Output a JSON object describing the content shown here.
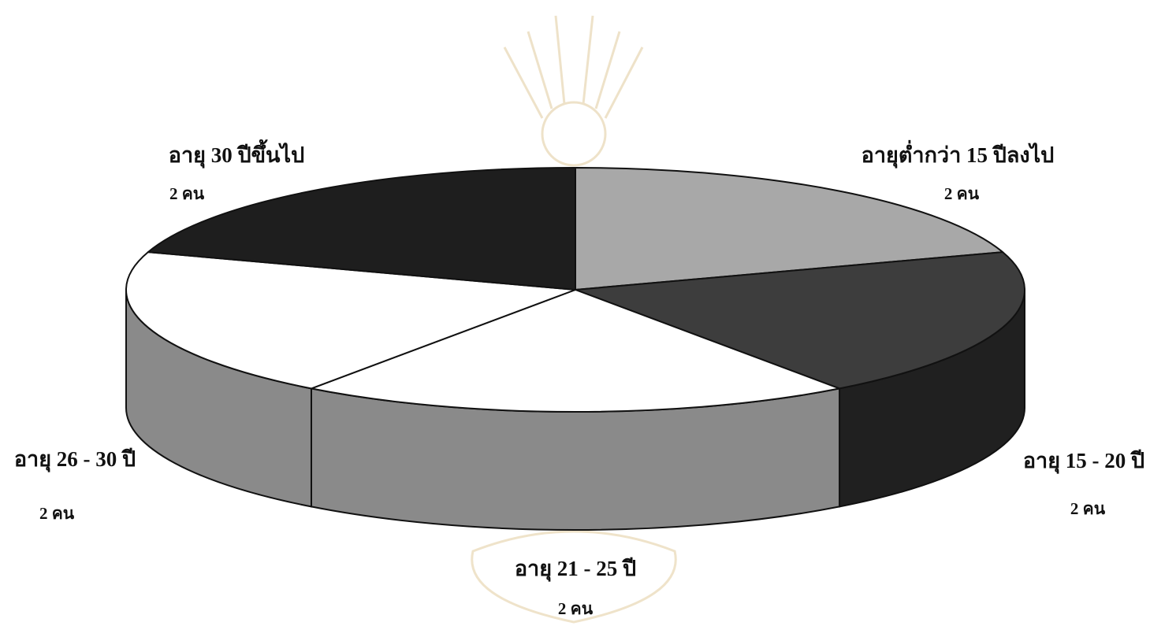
{
  "chart_data": {
    "type": "pie",
    "categories": [
      "อายุต่ำกว่า 15 ปีลงไป",
      "อายุ 15 - 20 ปี",
      "อายุ 21 - 25 ปี",
      "อายุ 26 - 30 ปี",
      "อายุ 30 ปีขึ้นไป"
    ],
    "values": [
      2,
      2,
      2,
      2,
      2
    ],
    "value_labels": [
      "2 คน",
      "2 คน",
      "2 คน",
      "2 คน",
      "2 คน"
    ],
    "title": "",
    "three_d": true,
    "colors": {
      "top": [
        "#a8a8a8",
        "#3d3d3d",
        "#ffffff",
        "#ffffff",
        "#1e1e1e"
      ],
      "side": [
        "#8e8e8e",
        "#202020",
        "#8a8a8a",
        "#8a8a8a",
        "#141414"
      ]
    }
  }
}
